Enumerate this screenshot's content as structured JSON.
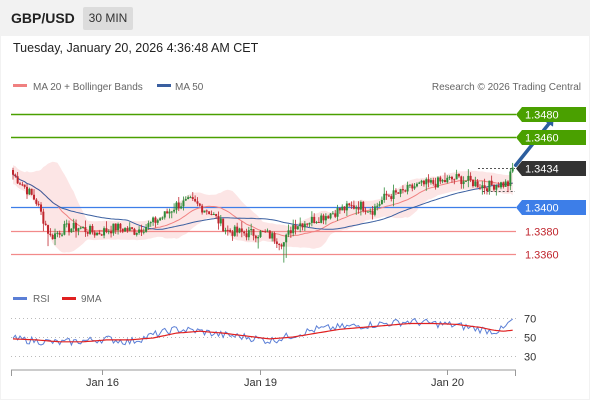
{
  "header": {
    "pair": "GBP/USD",
    "timeframe": "30 MIN"
  },
  "timestamp": "Tuesday, January 20, 2026 4:36:48 AM CET",
  "legend": {
    "ma20_label": "MA 20 + Bollinger Bands",
    "ma50_label": "MA 50",
    "credit": "Research © 2026 Trading Central",
    "rsi_label": "RSI",
    "rsi_ma_label": "9MA"
  },
  "colors": {
    "resistance": "#4aa000",
    "support": "#3d7ee8",
    "minor_support": "#f28a8a",
    "current": "#333333",
    "ma20": "#f08080",
    "ma50": "#3a5fa0",
    "band_fill": "#fbe0e0",
    "candle_up": "#2e8b3a",
    "candle_down": "#c0262e",
    "arrow": "#2c5e9e",
    "rsi": "#5b7fd6",
    "rsi_ma": "#e02020"
  },
  "chart_data": [
    {
      "type": "candlestick",
      "instrument": "GBP/USD",
      "timeframe": "30 MIN",
      "ylim": [
        1.3345,
        1.3495
      ],
      "x_ticks": [
        "Jan 16",
        "Jan 19",
        "Jan 20"
      ],
      "levels": [
        {
          "label": "1.3480",
          "value": 1.348,
          "kind": "resistance"
        },
        {
          "label": "1.3460",
          "value": 1.346,
          "kind": "resistance"
        },
        {
          "label": "1.3434",
          "value": 1.3434,
          "kind": "current"
        },
        {
          "label": "1.3400",
          "value": 1.34,
          "kind": "support"
        },
        {
          "label": "1.3380",
          "value": 1.338,
          "kind": "minor_support"
        },
        {
          "label": "1.3360",
          "value": 1.336,
          "kind": "minor_support"
        }
      ],
      "price_keypoints": [
        [
          0,
          1.3428
        ],
        [
          4,
          1.342
        ],
        [
          10,
          1.3405
        ],
        [
          16,
          1.3375
        ],
        [
          22,
          1.3382
        ],
        [
          28,
          1.3383
        ],
        [
          36,
          1.3378
        ],
        [
          44,
          1.3383
        ],
        [
          52,
          1.338
        ],
        [
          58,
          1.3385
        ],
        [
          64,
          1.3392
        ],
        [
          70,
          1.3402
        ],
        [
          76,
          1.3405
        ],
        [
          84,
          1.3397
        ],
        [
          92,
          1.338
        ],
        [
          100,
          1.3378
        ],
        [
          108,
          1.3378
        ],
        [
          116,
          1.337
        ],
        [
          120,
          1.3385
        ],
        [
          126,
          1.3388
        ],
        [
          132,
          1.3392
        ],
        [
          140,
          1.3398
        ],
        [
          148,
          1.3402
        ],
        [
          154,
          1.3398
        ],
        [
          160,
          1.341
        ],
        [
          166,
          1.3412
        ],
        [
          172,
          1.3418
        ],
        [
          178,
          1.342
        ],
        [
          184,
          1.3422
        ],
        [
          190,
          1.3425
        ],
        [
          196,
          1.3422
        ],
        [
          202,
          1.3418
        ],
        [
          208,
          1.342
        ],
        [
          212,
          1.342
        ],
        [
          214,
          1.3434
        ]
      ],
      "forecast_arrow": {
        "from": [
          214,
          1.3436
        ],
        "to": [
          230,
          1.348
        ]
      },
      "dotted_reference": [
        214,
        1.3414
      ]
    },
    {
      "type": "line",
      "title": "RSI",
      "ylim": [
        20,
        80
      ],
      "y_ticks": [
        70,
        50,
        30
      ],
      "series": [
        {
          "name": "RSI",
          "keypoints": [
            [
              0,
              48
            ],
            [
              10,
              46
            ],
            [
              20,
              44
            ],
            [
              30,
              46
            ],
            [
              40,
              48
            ],
            [
              50,
              45
            ],
            [
              60,
              52
            ],
            [
              70,
              58
            ],
            [
              80,
              56
            ],
            [
              90,
              52
            ],
            [
              100,
              50
            ],
            [
              110,
              46
            ],
            [
              120,
              52
            ],
            [
              130,
              58
            ],
            [
              140,
              60
            ],
            [
              150,
              62
            ],
            [
              160,
              64
            ],
            [
              170,
              66
            ],
            [
              180,
              64
            ],
            [
              190,
              62
            ],
            [
              200,
              58
            ],
            [
              206,
              56
            ],
            [
              210,
              58
            ],
            [
              214,
              68
            ]
          ]
        },
        {
          "name": "9MA",
          "keypoints": [
            [
              0,
              48
            ],
            [
              10,
              47
            ],
            [
              20,
              45
            ],
            [
              30,
              45
            ],
            [
              40,
              47
            ],
            [
              50,
              47
            ],
            [
              60,
              49
            ],
            [
              70,
              54
            ],
            [
              80,
              56
            ],
            [
              90,
              54
            ],
            [
              100,
              51
            ],
            [
              110,
              48
            ],
            [
              120,
              50
            ],
            [
              130,
              54
            ],
            [
              140,
              58
            ],
            [
              150,
              60
            ],
            [
              160,
              62
            ],
            [
              170,
              64
            ],
            [
              180,
              64
            ],
            [
              190,
              63
            ],
            [
              200,
              60
            ],
            [
              206,
              57
            ],
            [
              210,
              56
            ],
            [
              214,
              57
            ]
          ]
        }
      ]
    }
  ]
}
